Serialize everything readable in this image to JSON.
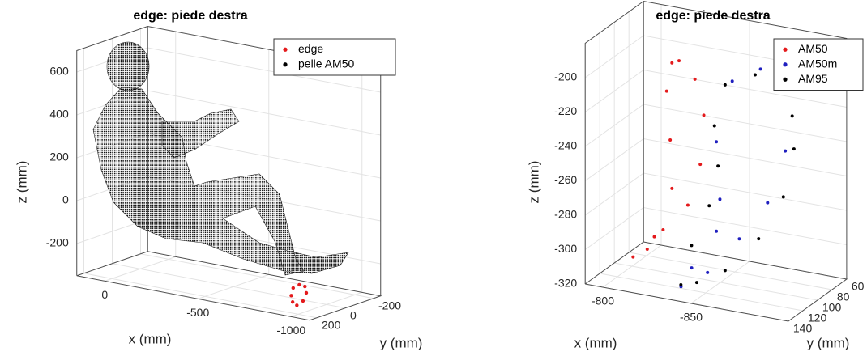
{
  "chart_data": [
    {
      "type": "scatter3d",
      "title": "edge: piede destra",
      "xlabel": "x (mm)",
      "ylabel": "y (mm)",
      "zlabel": "z (mm)",
      "xlim": [
        -1100,
        150
      ],
      "ylim": [
        -250,
        250
      ],
      "zlim": [
        -350,
        700
      ],
      "xticks": [
        0,
        -500,
        -1000
      ],
      "yticks": [
        200,
        0,
        -200
      ],
      "zticks": [
        -200,
        0,
        200,
        400,
        600
      ],
      "grid": true,
      "legend": "northeast",
      "series": [
        {
          "name": "edge",
          "color": "#e41a1c",
          "x": [
            -935,
            -945,
            -960,
            -975,
            -980,
            -970,
            -955,
            -940
          ],
          "y": [
            150,
            120,
            100,
            110,
            140,
            170,
            180,
            170
          ],
          "z": [
            -250,
            -240,
            -250,
            -275,
            -305,
            -320,
            -305,
            -280
          ]
        },
        {
          "name": "pelle AM50",
          "color": "#000000"
        }
      ]
    },
    {
      "type": "scatter3d",
      "title": "edge: piede destra",
      "xlabel": "x (mm)",
      "ylabel": "y (mm)",
      "zlabel": "z (mm)",
      "xlim": [
        -905,
        -790
      ],
      "ylim": [
        60,
        140
      ],
      "zlim": [
        -320,
        -180
      ],
      "xticks": [
        -800,
        -850
      ],
      "yticks": [
        60,
        80,
        100,
        120,
        140
      ],
      "zticks": [
        -200,
        -220,
        -240,
        -260,
        -280,
        -300,
        -320
      ],
      "grid": true,
      "legend": "northeast",
      "series": [
        {
          "name": "AM50",
          "color": "#e41a1c",
          "x": [
            -813,
            -825,
            -835,
            -834,
            -832,
            -835,
            -839,
            -848,
            -853,
            -851,
            -844,
            -830,
            -821
          ],
          "y": [
            130,
            130,
            130,
            130,
            130,
            130,
            130,
            130,
            130,
            130,
            130,
            130,
            130
          ],
          "z": [
            -303,
            -289,
            -259,
            -231,
            -203,
            -186,
            -184,
            -193,
            -213,
            -242,
            -267,
            -284,
            -297
          ]
        },
        {
          "name": "AM50m",
          "color": "#1f1fbf",
          "x": [
            -836,
            -842,
            -856,
            -858,
            -856,
            -865,
            -881,
            -895,
            -885,
            -869,
            -851
          ],
          "y": [
            120,
            120,
            120,
            120,
            120,
            120,
            120,
            120,
            120,
            120,
            120
          ],
          "z": [
            -319,
            -307,
            -283,
            -264,
            -231,
            -194,
            -184,
            -229,
            -261,
            -285,
            -308
          ]
        },
        {
          "name": "AM95",
          "color": "#000000",
          "x": [
            -838,
            -844,
            -854,
            -859,
            -857,
            -863,
            -880,
            -893,
            -901,
            -902,
            -896,
            -882,
            -863,
            -847
          ],
          "y": [
            125,
            125,
            125,
            125,
            125,
            125,
            125,
            125,
            125,
            125,
            125,
            125,
            125,
            125
          ],
          "z": [
            -316,
            -292,
            -267,
            -243,
            -220,
            -195,
            -186,
            -188,
            -206,
            -225,
            -254,
            -281,
            -303,
            -313
          ]
        }
      ]
    }
  ]
}
